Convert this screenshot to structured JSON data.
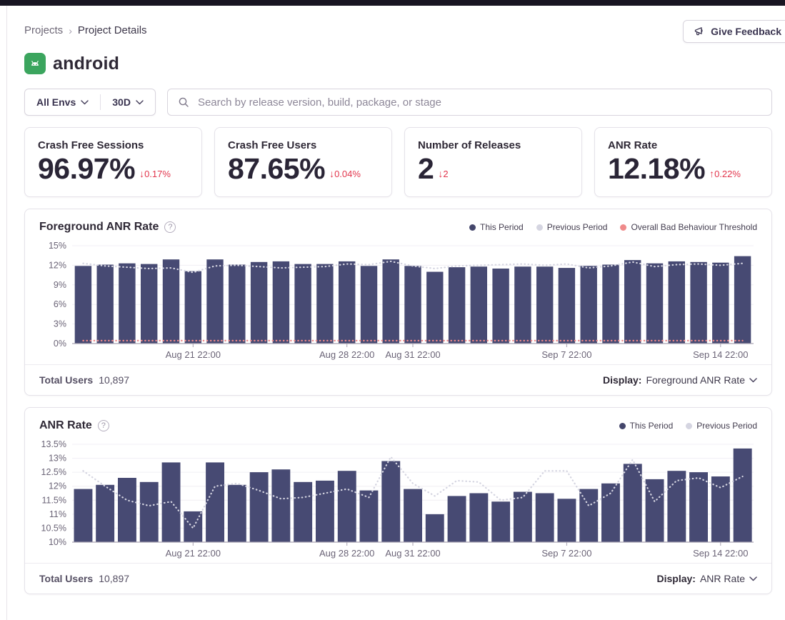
{
  "breadcrumb": {
    "items": [
      "Projects",
      "Project Details"
    ],
    "separator": "›"
  },
  "feedback_button": {
    "label": "Give Feedback"
  },
  "project": {
    "name": "android",
    "platform": "android"
  },
  "filters": {
    "env_label": "All Envs",
    "period_label": "30D",
    "search_placeholder": "Search by release version, build, package, or stage",
    "search_value": ""
  },
  "stats": [
    {
      "title": "Crash Free Sessions",
      "value": "96.97%",
      "delta_arrow": "↓",
      "delta": "0.17%"
    },
    {
      "title": "Crash Free Users",
      "value": "87.65%",
      "delta_arrow": "↓",
      "delta": "0.04%"
    },
    {
      "title": "Number of Releases",
      "value": "2",
      "delta_arrow": "↓",
      "delta": "2"
    },
    {
      "title": "ANR Rate",
      "value": "12.18%",
      "delta_arrow": "↑",
      "delta": "0.22%"
    }
  ],
  "icons": {
    "help_glyph": "?"
  },
  "charts": [
    {
      "title": "Foreground ANR Rate",
      "legend": [
        {
          "label": "This Period",
          "color": "#44466b"
        },
        {
          "label": "Previous Period",
          "color": "#d5d5e1"
        },
        {
          "label": "Overall Bad Behaviour Threshold",
          "color": "#ef8a8a"
        }
      ],
      "footer": {
        "total_users_label": "Total Users",
        "total_users": "10,897",
        "display_label": "Display:",
        "display_value": "Foreground ANR Rate"
      }
    },
    {
      "title": "ANR Rate",
      "legend": [
        {
          "label": "This Period",
          "color": "#44466b"
        },
        {
          "label": "Previous Period",
          "color": "#d5d5e1"
        }
      ],
      "footer": {
        "total_users_label": "Total Users",
        "total_users": "10,897",
        "display_label": "Display:",
        "display_value": "ANR Rate"
      }
    }
  ],
  "chart_data": [
    {
      "type": "bar",
      "title": "Foreground ANR Rate",
      "xlabel": "",
      "ylabel": "",
      "ylim": [
        0,
        15
      ],
      "yticks": [
        0,
        3,
        6,
        9,
        12,
        15
      ],
      "yticklabels": [
        "0%",
        "3%",
        "6%",
        "9%",
        "12%",
        "15%"
      ],
      "grid": true,
      "legend_position": "top-right",
      "bar_width_ratio": 0.76,
      "xticks": [
        {
          "index": 5,
          "label": "Aug 21 22:00"
        },
        {
          "index": 12,
          "label": "Aug 28 22:00"
        },
        {
          "index": 15,
          "label": "Aug 31 22:00"
        },
        {
          "index": 22,
          "label": "Sep 7 22:00"
        },
        {
          "index": 29,
          "label": "Sep 14 22:00"
        }
      ],
      "series": [
        {
          "name": "This Period",
          "render": "bar",
          "color": "#474a73",
          "values": [
            11.9,
            12.1,
            12.3,
            12.2,
            12.9,
            11.1,
            12.9,
            12.1,
            12.5,
            12.6,
            12.2,
            12.2,
            12.6,
            11.9,
            12.9,
            11.9,
            11.0,
            11.7,
            11.8,
            11.5,
            11.8,
            11.8,
            11.6,
            11.9,
            12.1,
            12.8,
            12.3,
            12.6,
            12.5,
            12.4,
            13.4
          ]
        },
        {
          "name": "Previous Period",
          "render": "dotted-line",
          "color": "#d5d5e1",
          "values": [
            12.3,
            11.9,
            11.7,
            11.5,
            11.6,
            10.9,
            11.9,
            12.0,
            11.8,
            11.6,
            11.7,
            11.8,
            12.2,
            12.1,
            12.6,
            11.9,
            11.5,
            11.9,
            12.0,
            12.1,
            12.2,
            12.0,
            12.2,
            11.6,
            11.9,
            12.5,
            11.8,
            12.1,
            12.2,
            12.0,
            12.3
          ]
        },
        {
          "name": "Overall Bad Behaviour Threshold",
          "render": "dotted-line",
          "color": "#ef8a8a",
          "constant": 0.45
        }
      ]
    },
    {
      "type": "bar",
      "title": "ANR Rate",
      "xlabel": "",
      "ylabel": "",
      "ylim": [
        10,
        13.5
      ],
      "yticks": [
        10,
        10.5,
        11,
        11.5,
        12,
        12.5,
        13,
        13.5
      ],
      "yticklabels": [
        "10%",
        "10.5%",
        "11%",
        "11.5%",
        "12%",
        "12.5%",
        "13%",
        "13.5%"
      ],
      "grid": true,
      "legend_position": "top-right",
      "bar_width_ratio": 0.84,
      "xticks": [
        {
          "index": 5,
          "label": "Aug 21 22:00"
        },
        {
          "index": 12,
          "label": "Aug 28 22:00"
        },
        {
          "index": 15,
          "label": "Aug 31 22:00"
        },
        {
          "index": 22,
          "label": "Sep 7 22:00"
        },
        {
          "index": 29,
          "label": "Sep 14 22:00"
        }
      ],
      "series": [
        {
          "name": "This Period",
          "render": "bar",
          "color": "#474a73",
          "values": [
            11.9,
            12.05,
            12.3,
            12.15,
            12.85,
            11.1,
            12.85,
            12.05,
            12.5,
            12.6,
            12.15,
            12.2,
            12.55,
            11.85,
            12.9,
            11.9,
            11.0,
            11.65,
            11.75,
            11.45,
            11.8,
            11.75,
            11.55,
            11.9,
            12.1,
            12.8,
            12.25,
            12.55,
            12.5,
            12.35,
            13.35
          ]
        },
        {
          "name": "Previous Period",
          "render": "dotted-line",
          "color": "#d5d5e1",
          "values": [
            12.55,
            12.0,
            11.5,
            11.3,
            11.45,
            10.5,
            12.0,
            12.1,
            11.85,
            11.55,
            11.6,
            11.75,
            11.9,
            11.6,
            13.05,
            12.1,
            11.65,
            12.2,
            12.15,
            11.5,
            11.6,
            12.55,
            12.55,
            11.3,
            11.75,
            12.95,
            11.45,
            12.2,
            12.3,
            11.95,
            12.35
          ]
        }
      ]
    }
  ]
}
